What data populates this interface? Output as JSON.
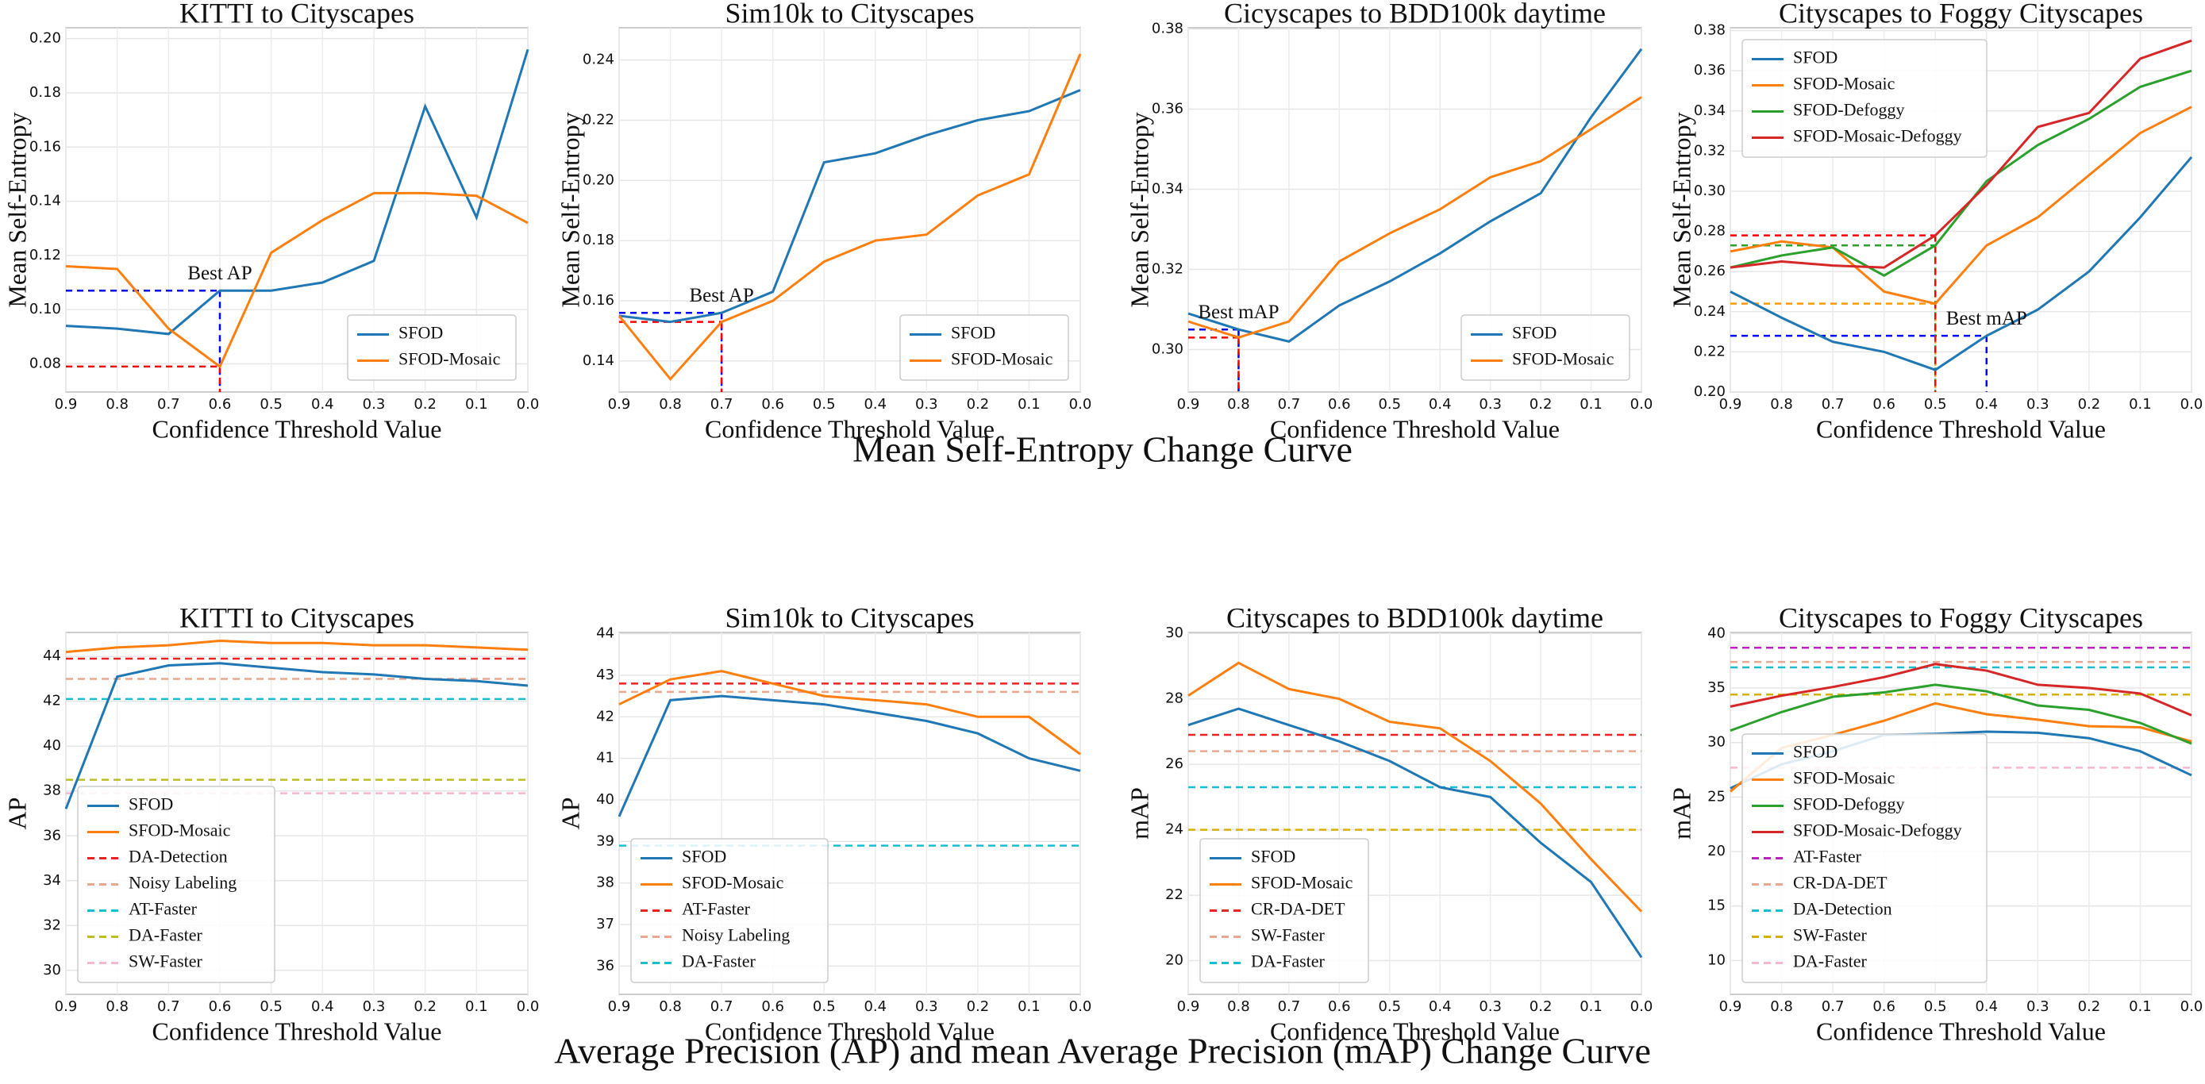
{
  "section_titles": [
    "Mean Self-Entropy Change Curve",
    "Average Precision (AP) and mean Average Precision (mAP) Change Curve"
  ],
  "chart_data": [
    {
      "type": "line",
      "title": "KITTI to Cityscapes",
      "x_label": "Confidence Threshold Value",
      "y_label": "Mean Self-Entropy",
      "categories": [
        "0.9",
        "0.8",
        "0.7",
        "0.6",
        "0.5",
        "0.4",
        "0.3",
        "0.2",
        "0.1",
        "0.0"
      ],
      "ylim": [
        0.0696,
        0.204
      ],
      "yticks": [
        0.08,
        {
          "value": 0.1,
          "label": "0.10"
        },
        0.12,
        0.14,
        0.16,
        0.18,
        {
          "value": 0.2,
          "label": "0.20"
        }
      ],
      "grid": true,
      "legend": "lower right",
      "annotation": {
        "text": "Best AP",
        "at": "0.6"
      },
      "series": [
        {
          "name": "SFOD",
          "color": "#1f77b4",
          "values": [
            0.094,
            0.093,
            0.091,
            0.107,
            0.107,
            0.11,
            0.118,
            0.175,
            0.134,
            0.196
          ],
          "best_at": "0.6",
          "best_color": "#0000ff"
        },
        {
          "name": "SFOD-Mosaic",
          "color": "#ff7f0e",
          "values": [
            0.116,
            0.115,
            0.093,
            0.079,
            0.121,
            0.133,
            0.143,
            0.143,
            0.142,
            0.132
          ],
          "best_at": "0.6",
          "best_color": "#ff0000"
        }
      ]
    },
    {
      "type": "line",
      "title": "Sim10k to Cityscapes",
      "x_label": "Confidence Threshold Value",
      "y_label": "Mean Self-Entropy",
      "categories": [
        "0.9",
        "0.8",
        "0.7",
        "0.6",
        "0.5",
        "0.4",
        "0.3",
        "0.2",
        "0.1",
        "0.0"
      ],
      "ylim": [
        0.1297,
        0.2507
      ],
      "yticks": [
        0.14,
        0.16,
        0.18,
        {
          "value": 0.2,
          "label": "0.20"
        },
        0.22,
        0.24
      ],
      "grid": true,
      "legend": "lower right",
      "annotation": {
        "text": "Best AP",
        "at": "0.7"
      },
      "series": [
        {
          "name": "SFOD",
          "color": "#1f77b4",
          "values": [
            0.155,
            0.153,
            0.156,
            0.163,
            0.206,
            0.209,
            0.215,
            0.22,
            0.223,
            0.23
          ],
          "best_at": "0.7",
          "best_color": "#0000ff"
        },
        {
          "name": "SFOD-Mosaic",
          "color": "#ff7f0e",
          "values": [
            0.155,
            0.134,
            0.153,
            0.16,
            0.173,
            0.18,
            0.182,
            0.195,
            0.202,
            0.242
          ],
          "best_at": "0.7",
          "best_color": "#ff0000"
        }
      ]
    },
    {
      "type": "line",
      "title": "Cicyscapes to BDD100k daytime",
      "x_label": "Confidence Threshold Value",
      "y_label": "Mean Self-Entropy",
      "categories": [
        "0.9",
        "0.8",
        "0.7",
        "0.6",
        "0.5",
        "0.4",
        "0.3",
        "0.2",
        "0.1",
        "0.0"
      ],
      "ylim": [
        0.2894,
        0.3803
      ],
      "yticks": [
        {
          "value": 0.3,
          "label": "0.30"
        },
        0.32,
        0.34,
        0.36,
        0.38
      ],
      "grid": true,
      "legend": "lower right",
      "annotation": {
        "text": "Best mAP",
        "at": "0.8"
      },
      "series": [
        {
          "name": "SFOD",
          "color": "#1f77b4",
          "values": [
            0.309,
            0.305,
            0.302,
            0.311,
            0.317,
            0.324,
            0.332,
            0.339,
            0.358,
            0.375
          ],
          "best_at": "0.8",
          "best_color": "#0000ff"
        },
        {
          "name": "SFOD-Mosaic",
          "color": "#ff7f0e",
          "values": [
            0.307,
            0.303,
            0.307,
            0.322,
            0.329,
            0.335,
            0.343,
            0.347,
            0.355,
            0.363
          ],
          "best_at": "0.8",
          "best_color": "#ff0000"
        }
      ]
    },
    {
      "type": "line",
      "title": "Cityscapes to Foggy Cityscapes",
      "x_label": "Confidence Threshold Value",
      "y_label": "Mean Self-Entropy",
      "categories": [
        "0.9",
        "0.8",
        "0.7",
        "0.6",
        "0.5",
        "0.4",
        "0.3",
        "0.2",
        "0.1",
        "0.0"
      ],
      "ylim": [
        0.2,
        0.3814
      ],
      "yticks": [
        {
          "value": 0.2,
          "label": "0.20"
        },
        0.22,
        0.24,
        0.26,
        0.28,
        {
          "value": 0.3,
          "label": "0.30"
        },
        0.32,
        0.34,
        0.36,
        0.38
      ],
      "grid": true,
      "legend": "upper left",
      "annotation": {
        "text": "Best mAP",
        "at": "0.4"
      },
      "series": [
        {
          "name": "SFOD",
          "color": "#1f77b4",
          "values": [
            0.25,
            0.237,
            0.225,
            0.22,
            0.211,
            0.228,
            0.241,
            0.26,
            0.287,
            0.317
          ],
          "best_at": "0.4",
          "best_color": "#0000ff"
        },
        {
          "name": "SFOD-Mosaic",
          "color": "#ff7f0e",
          "values": [
            0.27,
            0.275,
            0.272,
            0.25,
            0.244,
            0.273,
            0.287,
            0.308,
            0.329,
            0.342
          ],
          "best_at": "0.5",
          "best_color": "#ff9900"
        },
        {
          "name": "SFOD-Defoggy",
          "color": "#2ca02c",
          "values": [
            0.262,
            0.268,
            0.272,
            0.258,
            0.273,
            0.305,
            0.323,
            0.336,
            0.352,
            0.36
          ],
          "best_at": "0.5",
          "best_color": "#2ca02c"
        },
        {
          "name": "SFOD-Mosaic-Defoggy",
          "color": "#d62728",
          "values": [
            0.262,
            0.265,
            0.263,
            0.262,
            0.278,
            0.303,
            0.332,
            0.339,
            0.366,
            0.375
          ],
          "best_at": "0.5",
          "best_color": "#ff0000"
        }
      ]
    },
    {
      "type": "line",
      "title": "KITTI to Cityscapes",
      "x_label": "Confidence Threshold Value",
      "y_label": "AP",
      "categories": [
        "0.9",
        "0.8",
        "0.7",
        "0.6",
        "0.5",
        "0.4",
        "0.3",
        "0.2",
        "0.1",
        "0.0"
      ],
      "ylim": [
        28.93,
        45.07
      ],
      "yticks": [
        30,
        32,
        34,
        36,
        38,
        40,
        42,
        44
      ],
      "grid": true,
      "legend": "lower left",
      "series": [
        {
          "name": "SFOD",
          "color": "#1f77b4",
          "values": [
            37.2,
            43.1,
            43.6,
            43.7,
            43.5,
            43.3,
            43.2,
            43.0,
            42.9,
            42.7
          ]
        },
        {
          "name": "SFOD-Mosaic",
          "color": "#ff7f0e",
          "values": [
            44.2,
            44.4,
            44.5,
            44.7,
            44.6,
            44.6,
            44.5,
            44.5,
            44.4,
            44.3
          ]
        }
      ],
      "baselines": [
        {
          "name": "DA-Detection",
          "color": "#ee2222",
          "value": 43.9
        },
        {
          "name": "Noisy Labeling",
          "color": "#e8a88f",
          "value": 43.0
        },
        {
          "name": "AT-Faster",
          "color": "#17becf",
          "value": 42.1
        },
        {
          "name": "DA-Faster",
          "color": "#bcbd22",
          "value": 38.5
        },
        {
          "name": "SW-Faster",
          "color": "#f7b6d2",
          "value": 37.9
        }
      ]
    },
    {
      "type": "line",
      "title": "Sim10k to Cityscapes",
      "x_label": "Confidence Threshold Value",
      "y_label": "AP",
      "categories": [
        "0.9",
        "0.8",
        "0.7",
        "0.6",
        "0.5",
        "0.4",
        "0.3",
        "0.2",
        "0.1",
        "0.0"
      ],
      "ylim": [
        35.32,
        44.03
      ],
      "yticks": [
        36,
        37,
        38,
        39,
        40,
        41,
        42,
        43,
        44
      ],
      "grid": true,
      "legend": "lower left",
      "series": [
        {
          "name": "SFOD",
          "color": "#1f77b4",
          "values": [
            39.6,
            42.4,
            42.5,
            42.4,
            42.3,
            42.1,
            41.9,
            41.6,
            41.0,
            40.7
          ]
        },
        {
          "name": "SFOD-Mosaic",
          "color": "#ff7f0e",
          "values": [
            42.3,
            42.9,
            43.1,
            42.8,
            42.5,
            42.4,
            42.3,
            42.0,
            42.0,
            41.1
          ]
        }
      ],
      "baselines": [
        {
          "name": "AT-Faster",
          "color": "#ee2222",
          "value": 42.8
        },
        {
          "name": "Noisy Labeling",
          "color": "#e8a88f",
          "value": 42.6
        },
        {
          "name": "DA-Faster",
          "color": "#17becf",
          "value": 38.9
        }
      ]
    },
    {
      "type": "line",
      "title": "Cityscapes to BDD100k daytime",
      "x_label": "Confidence Threshold Value",
      "y_label": "mAP",
      "categories": [
        "0.9",
        "0.8",
        "0.7",
        "0.6",
        "0.5",
        "0.4",
        "0.3",
        "0.2",
        "0.1",
        "0.0"
      ],
      "ylim": [
        18.97,
        30.03
      ],
      "yticks": [
        20,
        22,
        24,
        26,
        28,
        30
      ],
      "grid": true,
      "legend": "lower left",
      "series": [
        {
          "name": "SFOD",
          "color": "#1f77b4",
          "values": [
            27.2,
            27.7,
            27.2,
            26.7,
            26.1,
            25.3,
            25.0,
            23.6,
            22.4,
            20.1
          ]
        },
        {
          "name": "SFOD-Mosaic",
          "color": "#ff7f0e",
          "values": [
            28.1,
            29.1,
            28.3,
            28.0,
            27.3,
            27.1,
            26.1,
            24.8,
            23.1,
            21.5
          ]
        }
      ],
      "baselines": [
        {
          "name": "CR-DA-DET",
          "color": "#ee2222",
          "value": 26.9
        },
        {
          "name": "SW-Faster",
          "color": "#e8a88f",
          "value": 26.4
        },
        {
          "name": "DA-Faster",
          "color": "#17becf",
          "value": 25.3
        },
        {
          "name": null,
          "color": "#d4b000",
          "value": 24.0
        }
      ]
    },
    {
      "type": "line",
      "title": "Cityscapes to Foggy Cityscapes",
      "x_label": "Confidence Threshold Value",
      "y_label": "mAP",
      "categories": [
        "0.9",
        "0.8",
        "0.7",
        "0.6",
        "0.5",
        "0.4",
        "0.3",
        "0.2",
        "0.1",
        "0.0"
      ],
      "ylim": [
        6.9,
        40.1
      ],
      "yticks": [
        10,
        15,
        20,
        25,
        30,
        35,
        40
      ],
      "grid": true,
      "legend": "lower left",
      "series": [
        {
          "name": "SFOD",
          "color": "#1f77b4",
          "values": [
            25.8,
            28.0,
            29.2,
            30.7,
            30.8,
            31.0,
            30.9,
            30.4,
            29.2,
            27.0
          ]
        },
        {
          "name": "SFOD-Mosaic",
          "color": "#ff7f0e",
          "values": [
            25.5,
            29.5,
            30.7,
            32.0,
            33.6,
            32.6,
            32.1,
            31.5,
            31.4,
            30.1
          ]
        },
        {
          "name": "SFOD-Defoggy",
          "color": "#2ca02c",
          "values": [
            31.1,
            32.8,
            34.2,
            34.6,
            35.3,
            34.7,
            33.4,
            33.0,
            31.8,
            29.9
          ]
        },
        {
          "name": "SFOD-Mosaic-Defoggy",
          "color": "#d62728",
          "values": [
            33.3,
            34.3,
            35.1,
            36.0,
            37.2,
            36.6,
            35.3,
            35.0,
            34.5,
            32.5
          ]
        }
      ],
      "baselines": [
        {
          "name": "AT-Faster",
          "color": "#c020c0",
          "value": 38.7
        },
        {
          "name": "CR-DA-DET",
          "color": "#e8a88f",
          "value": 37.4
        },
        {
          "name": "DA-Detection",
          "color": "#17becf",
          "value": 36.9
        },
        {
          "name": "SW-Faster",
          "color": "#d4b000",
          "value": 34.4
        },
        {
          "name": "DA-Faster",
          "color": "#f7b6d2",
          "value": 27.7
        }
      ]
    }
  ]
}
